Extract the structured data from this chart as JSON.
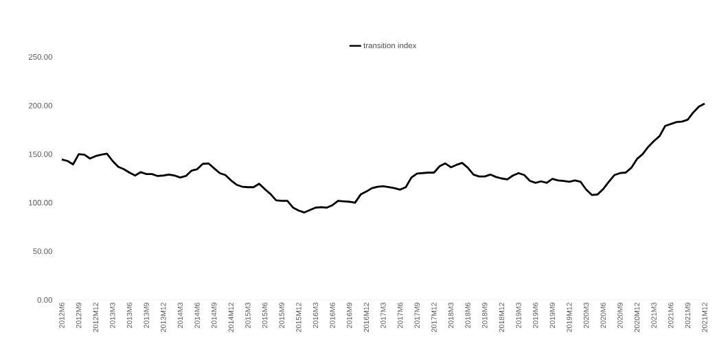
{
  "chart_data": {
    "type": "line",
    "categories": [
      "2012M6",
      null,
      null,
      "2012M9",
      null,
      null,
      "2012M12",
      null,
      null,
      "2013M3",
      null,
      null,
      "2013M6",
      null,
      null,
      "2013M9",
      null,
      null,
      "2013M12",
      null,
      null,
      "2014M3",
      null,
      null,
      "2014M6",
      null,
      null,
      "2014M9",
      null,
      null,
      "2014M12",
      null,
      null,
      "2015M3",
      null,
      null,
      "2015M6",
      null,
      null,
      "2015M9",
      null,
      null,
      "2015M12",
      null,
      null,
      "2016M3",
      null,
      null,
      "2016M6",
      null,
      null,
      "2016M9",
      null,
      null,
      "2016M12",
      null,
      null,
      "2017M3",
      null,
      null,
      "2017M6",
      null,
      null,
      "2017M9",
      null,
      null,
      "2017M12",
      null,
      null,
      "2018M3",
      null,
      null,
      "2018M6",
      null,
      null,
      "2018M9",
      null,
      null,
      "2018M12",
      null,
      null,
      "2019M3",
      null,
      null,
      "2019M6",
      null,
      null,
      "2019M9",
      null,
      null,
      "2019M12",
      null,
      null,
      "2020M3",
      null,
      null,
      "2020M6",
      null,
      null,
      "2020M9",
      null,
      null,
      "2020M12",
      null,
      null,
      "2021M3",
      null,
      null,
      "2021M6",
      null,
      null,
      "2021M9",
      null,
      null,
      "2021M12"
    ],
    "series": [
      {
        "name": "transition index",
        "color": "#000000",
        "values": [
          144.5,
          143,
          139.5,
          150,
          149.5,
          145.5,
          148,
          149.5,
          150.5,
          143,
          137,
          134.5,
          131,
          128,
          131.5,
          129.5,
          129.5,
          127.5,
          128,
          129,
          128,
          126,
          127.5,
          133,
          134.5,
          140,
          140.5,
          135.5,
          130.5,
          128.5,
          123,
          118.5,
          116.5,
          116,
          116,
          119.5,
          114,
          109,
          102.5,
          102,
          102,
          95,
          92,
          90,
          92.5,
          95,
          95.5,
          95,
          97.5,
          102,
          101.5,
          101,
          100,
          108.5,
          111.5,
          115,
          116.5,
          117,
          116,
          115,
          113.5,
          116,
          126,
          130,
          130.5,
          131,
          131,
          137.5,
          140.5,
          136.5,
          139,
          141,
          136,
          129,
          127,
          127,
          129,
          126.5,
          125,
          124,
          128,
          130.5,
          128.5,
          122.5,
          120.5,
          122,
          120.5,
          124.5,
          123,
          122.5,
          121.5,
          123,
          121.5,
          113.5,
          108,
          108.5,
          114,
          121.5,
          128.5,
          130.5,
          131,
          136,
          145,
          150,
          157.5,
          163.5,
          168.5,
          179,
          181,
          183,
          183.5,
          185.5,
          193,
          199,
          202
        ]
      }
    ],
    "ylim": [
      0,
      250
    ],
    "yticks": [
      {
        "value": 0,
        "label": "0.00"
      },
      {
        "value": 50,
        "label": "50.00"
      },
      {
        "value": 100,
        "label": "100.00"
      },
      {
        "value": 150,
        "label": "150.00"
      },
      {
        "value": 200,
        "label": "200.00"
      },
      {
        "value": 250,
        "label": "250.00"
      }
    ],
    "legend": "top",
    "grid": false,
    "marker": "none",
    "line_style": "solid"
  }
}
